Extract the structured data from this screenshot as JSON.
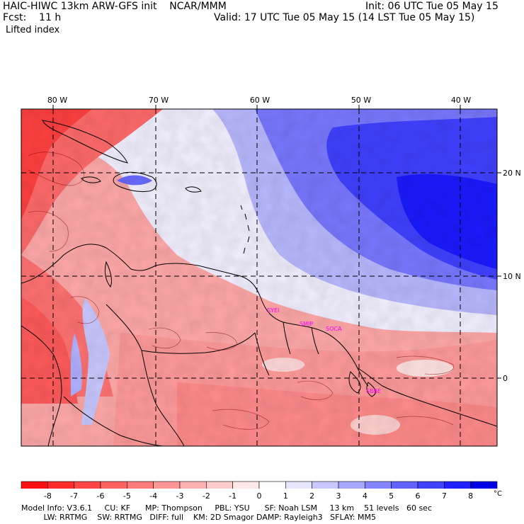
{
  "header": {
    "title": "HAIC-HIWC 13km ARW-GFS init    NCAR/MMM",
    "init": "Init: 06 UTC Tue 05 May 15",
    "fcst": "Fcst:    11 h",
    "valid": "Valid: 17 UTC Tue 05 May 15 (14 LST Tue 05 May 15)",
    "field": "Lifted index"
  },
  "map": {
    "lon_labels": [
      "80 W",
      "70 W",
      "60 W",
      "50 W",
      "40 W"
    ],
    "lat_labels": [
      "20 N",
      "10 N",
      "0"
    ],
    "sites": [
      "SYEI",
      "SMJP",
      "SOCA",
      "SBBE"
    ]
  },
  "colorbar": {
    "labels": [
      "-8",
      "-7",
      "-6",
      "-5",
      "-4",
      "-3",
      "-2",
      "-1",
      "0",
      "1",
      "2",
      "3",
      "4",
      "5",
      "6",
      "7",
      "8"
    ],
    "unit": "°C",
    "colors": [
      "#ff1010",
      "#ff2b2b",
      "#ff4646",
      "#ff6060",
      "#ff7b7b",
      "#ff9696",
      "#ffb0b0",
      "#ffcccc",
      "#ffe8e8",
      "#ffffff",
      "#e6e6ff",
      "#c8c8ff",
      "#a6a6ff",
      "#8484ff",
      "#6262ff",
      "#4040ff",
      "#2020ff",
      "#0000e6"
    ]
  },
  "footer": {
    "line1": "Model Info: V3.6.1     CU: KF      MP: Thompson     PBL: YSU      SF: Noah LSM     13 km    51 levels   60 sec",
    "line2": "         LW: RRTMG    SW: RRTMG   DIFF: full    KM: 2D Smagor DAMP: Rayleigh3   SFLAY: MM5"
  }
}
